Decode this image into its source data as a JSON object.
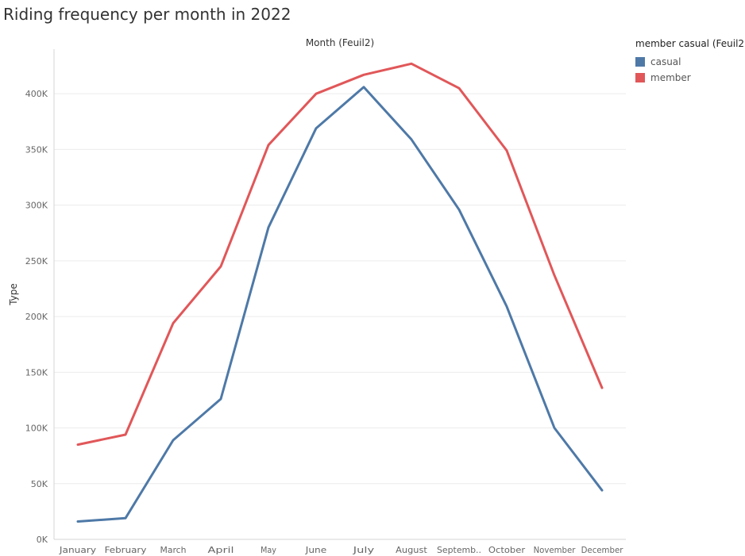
{
  "chart_data": {
    "type": "line",
    "title": "Riding frequency per month in 2022",
    "column_header": "Month  (Feuil2)",
    "xlabel": "",
    "ylabel": "Type",
    "categories": [
      "January",
      "February",
      "March",
      "April",
      "May",
      "June",
      "July",
      "August",
      "Septemb..",
      "October",
      "November",
      "December"
    ],
    "ylim": [
      0,
      440000
    ],
    "yticks": [
      0,
      50000,
      100000,
      150000,
      200000,
      250000,
      300000,
      350000,
      400000
    ],
    "ytick_labels": [
      "0K",
      "50K",
      "100K",
      "150K",
      "200K",
      "250K",
      "300K",
      "350K",
      "400K"
    ],
    "grid": true,
    "legend_position": "top-right",
    "legend_title": "member casual (Feuil2)",
    "series": [
      {
        "name": "casual",
        "color": "#4e79a7",
        "values": [
          16000,
          19000,
          89000,
          126000,
          280000,
          369000,
          406000,
          359000,
          296000,
          209000,
          100000,
          44000
        ]
      },
      {
        "name": "member",
        "color": "#e15759",
        "values": [
          85000,
          94000,
          194000,
          245000,
          354000,
          400000,
          417000,
          427000,
          405000,
          349000,
          237000,
          136000
        ]
      }
    ]
  }
}
